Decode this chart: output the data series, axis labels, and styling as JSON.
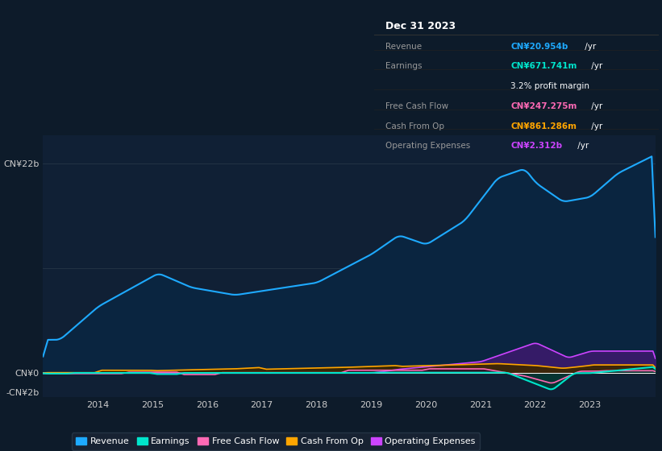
{
  "bg_color": "#0d1b2a",
  "plot_bg_color": "#102035",
  "revenue_color": "#1eaaff",
  "earnings_color": "#00e5cc",
  "fcf_color": "#ff69b4",
  "cashfromop_color": "#ffa500",
  "opex_color": "#cc44ff",
  "revenue_fill": "#0a2540",
  "opex_fill": "#3d1a6e",
  "cop_fill": "#3d2800",
  "earnings_fill": "#003d33",
  "fcf_fill": "#2a1030",
  "ylim": [
    -2500000000.0,
    25000000000.0
  ],
  "ytick_labels": [
    "-CN¥2b",
    "CN¥0",
    "CN¥22b"
  ],
  "ytick_vals": [
    -2000000000.0,
    0,
    22000000000.0
  ],
  "xtick_labels": [
    "2014",
    "2015",
    "2016",
    "2017",
    "2018",
    "2019",
    "2020",
    "2021",
    "2022",
    "2023"
  ],
  "xtick_vals": [
    2014,
    2015,
    2016,
    2017,
    2018,
    2019,
    2020,
    2021,
    2022,
    2023
  ],
  "legend_items": [
    {
      "label": "Revenue",
      "color": "#1eaaff"
    },
    {
      "label": "Earnings",
      "color": "#00e5cc"
    },
    {
      "label": "Free Cash Flow",
      "color": "#ff69b4"
    },
    {
      "label": "Cash From Op",
      "color": "#ffa500"
    },
    {
      "label": "Operating Expenses",
      "color": "#cc44ff"
    }
  ],
  "tooltip": {
    "title": "Dec 31 2023",
    "rows": [
      {
        "label": "Revenue",
        "value": "CN¥20.954b /yr",
        "vcolor": "#1eaaff"
      },
      {
        "label": "Earnings",
        "value": "CN¥671.741m /yr",
        "vcolor": "#00e5cc"
      },
      {
        "label": "",
        "value": "3.2% profit margin",
        "vcolor": "#ffffff"
      },
      {
        "label": "Free Cash Flow",
        "value": "CN¥247.275m /yr",
        "vcolor": "#ff69b4"
      },
      {
        "label": "Cash From Op",
        "value": "CN¥861.286m /yr",
        "vcolor": "#ffa500"
      },
      {
        "label": "Operating Expenses",
        "value": "CN¥2.312b /yr",
        "vcolor": "#cc44ff"
      }
    ]
  }
}
